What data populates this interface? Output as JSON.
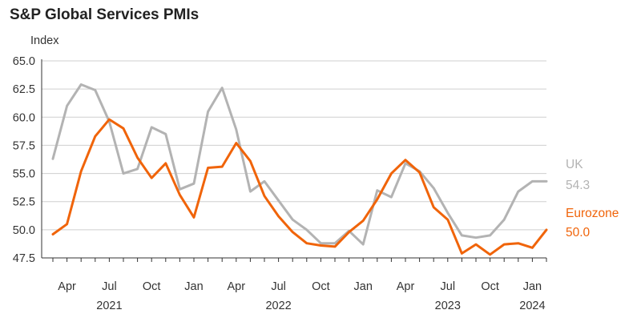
{
  "title": "S&P Global Services PMIs",
  "chart_data": {
    "type": "line",
    "title": "S&P Global Services PMIs",
    "ylabel": "Index",
    "xlabel": "",
    "ylim": [
      47.5,
      65.0
    ],
    "yticks": [
      "65.0",
      "62.5",
      "60.0",
      "57.5",
      "55.0",
      "52.5",
      "50.0",
      "47.5"
    ],
    "grid": true,
    "legend": "end-of-line labels (right)",
    "x": [
      "2021-03",
      "2021-04",
      "2021-05",
      "2021-06",
      "2021-07",
      "2021-08",
      "2021-09",
      "2021-10",
      "2021-11",
      "2021-12",
      "2022-01",
      "2022-02",
      "2022-03",
      "2022-04",
      "2022-05",
      "2022-06",
      "2022-07",
      "2022-08",
      "2022-09",
      "2022-10",
      "2022-11",
      "2022-12",
      "2023-01",
      "2023-02",
      "2023-03",
      "2023-04",
      "2023-05",
      "2023-06",
      "2023-07",
      "2023-08",
      "2023-09",
      "2023-10",
      "2023-11",
      "2023-12",
      "2024-01",
      "2024-02"
    ],
    "month_ticks": [
      {
        "label": "Apr",
        "x": "2021-04"
      },
      {
        "label": "Jul",
        "x": "2021-07"
      },
      {
        "label": "Oct",
        "x": "2021-10"
      },
      {
        "label": "Jan",
        "x": "2022-01"
      },
      {
        "label": "Apr",
        "x": "2022-04"
      },
      {
        "label": "Jul",
        "x": "2022-07"
      },
      {
        "label": "Oct",
        "x": "2022-10"
      },
      {
        "label": "Jan",
        "x": "2023-01"
      },
      {
        "label": "Apr",
        "x": "2023-04"
      },
      {
        "label": "Jul",
        "x": "2023-07"
      },
      {
        "label": "Oct",
        "x": "2023-10"
      },
      {
        "label": "Jan",
        "x": "2024-01"
      }
    ],
    "year_ticks": [
      {
        "label": "2021",
        "x": "2021-07"
      },
      {
        "label": "2022",
        "x": "2022-07"
      },
      {
        "label": "2023",
        "x": "2023-07"
      },
      {
        "label": "2024",
        "x": "2024-01"
      }
    ],
    "series": [
      {
        "name": "UK",
        "end_value": "54.3",
        "color": "#b3b3b3",
        "values": [
          56.3,
          61.0,
          62.9,
          62.4,
          59.6,
          55.0,
          55.4,
          59.1,
          58.5,
          53.6,
          54.1,
          60.5,
          62.6,
          58.9,
          53.4,
          54.3,
          52.6,
          50.9,
          50.0,
          48.8,
          48.8,
          49.9,
          48.7,
          53.5,
          52.9,
          55.9,
          55.2,
          53.7,
          51.5,
          49.5,
          49.3,
          49.5,
          50.9,
          53.4,
          54.3,
          54.3
        ]
      },
      {
        "name": "Eurozone",
        "end_value": "50.0",
        "color": "#f0640a",
        "values": [
          49.6,
          50.5,
          55.2,
          58.3,
          59.8,
          59.0,
          56.4,
          54.6,
          55.9,
          53.1,
          51.1,
          55.5,
          55.6,
          57.7,
          56.1,
          53.0,
          51.2,
          49.8,
          48.8,
          48.6,
          48.5,
          49.8,
          50.8,
          52.7,
          55.0,
          56.2,
          55.1,
          52.0,
          50.9,
          47.9,
          48.7,
          47.8,
          48.7,
          48.8,
          48.4,
          50.0
        ]
      }
    ]
  }
}
